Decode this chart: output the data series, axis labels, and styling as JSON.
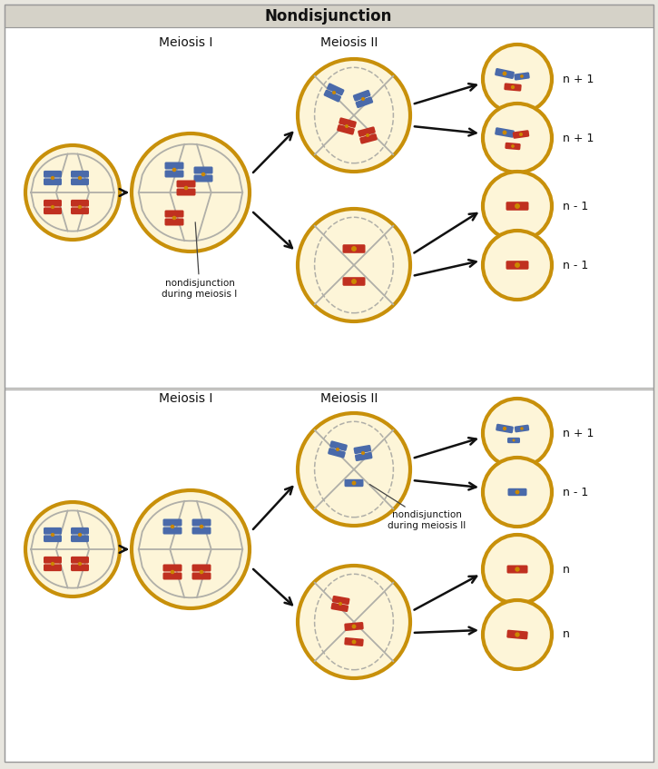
{
  "title": "Nondisjunction",
  "title_fontsize": 12,
  "label_meiosis1": "Meiosis I",
  "label_meiosis2": "Meiosis II",
  "cell_fill": "#fdf5d8",
  "cell_edge": "#c8900a",
  "cell_edge_width": 3.0,
  "spindle_color": "#b0afa8",
  "blue_chr": "#4a6aaa",
  "red_chr": "#c03020",
  "centromere_color": "#cc8800",
  "arrow_color": "#111111",
  "text_color": "#111111",
  "panel_bg": "#e8e6df",
  "top_bar_color": "#d5d2c8",
  "white_bg": "#ffffff"
}
